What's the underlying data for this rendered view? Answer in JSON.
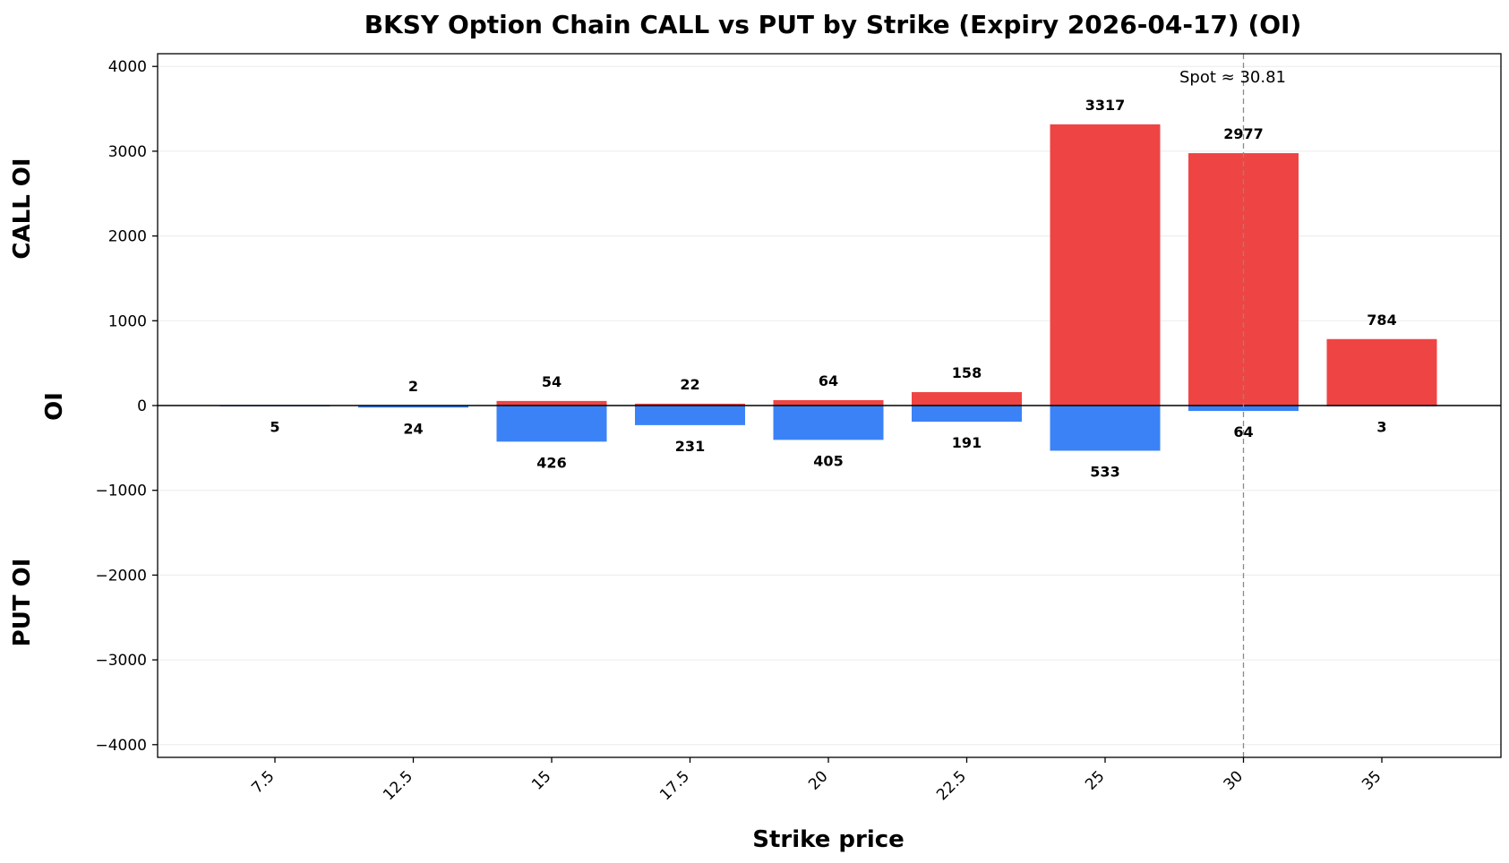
{
  "chart_data": {
    "type": "bar",
    "title": "BKSY Option Chain CALL vs PUT by Strike (Expiry 2026-04-17) (OI)",
    "xlabel": "Strike price",
    "ylabel": "OI",
    "upper_label": "CALL OI",
    "lower_label": "PUT OI",
    "categories": [
      "7.5",
      "12.5",
      "15",
      "17.5",
      "20",
      "22.5",
      "25",
      "30",
      "35"
    ],
    "series": [
      {
        "name": "CALL OI",
        "color": "#ef4444",
        "values": [
          0,
          2,
          54,
          22,
          64,
          158,
          3317,
          2977,
          784
        ],
        "labels": [
          "",
          "2",
          "54",
          "22",
          "64",
          "158",
          "3317",
          "2977",
          "784"
        ]
      },
      {
        "name": "PUT OI",
        "color": "#3b82f6",
        "values": [
          5,
          24,
          426,
          231,
          405,
          191,
          533,
          64,
          3
        ],
        "labels": [
          "5",
          "24",
          "426",
          "231",
          "405",
          "191",
          "533",
          "64",
          "3"
        ]
      }
    ],
    "ylim": [
      -4150,
      4150
    ],
    "yticks": [
      4000,
      3000,
      2000,
      1000,
      0,
      -1000,
      -2000,
      -3000,
      -4000
    ],
    "ytick_labels": [
      "4000",
      "3000",
      "2000",
      "1000",
      "0",
      "−1000",
      "−2000",
      "−3000",
      "−4000"
    ],
    "spot": {
      "value": 30.81,
      "label": "Spot ≈ 30.81",
      "category": "30"
    },
    "grid": true,
    "legend": "none"
  }
}
